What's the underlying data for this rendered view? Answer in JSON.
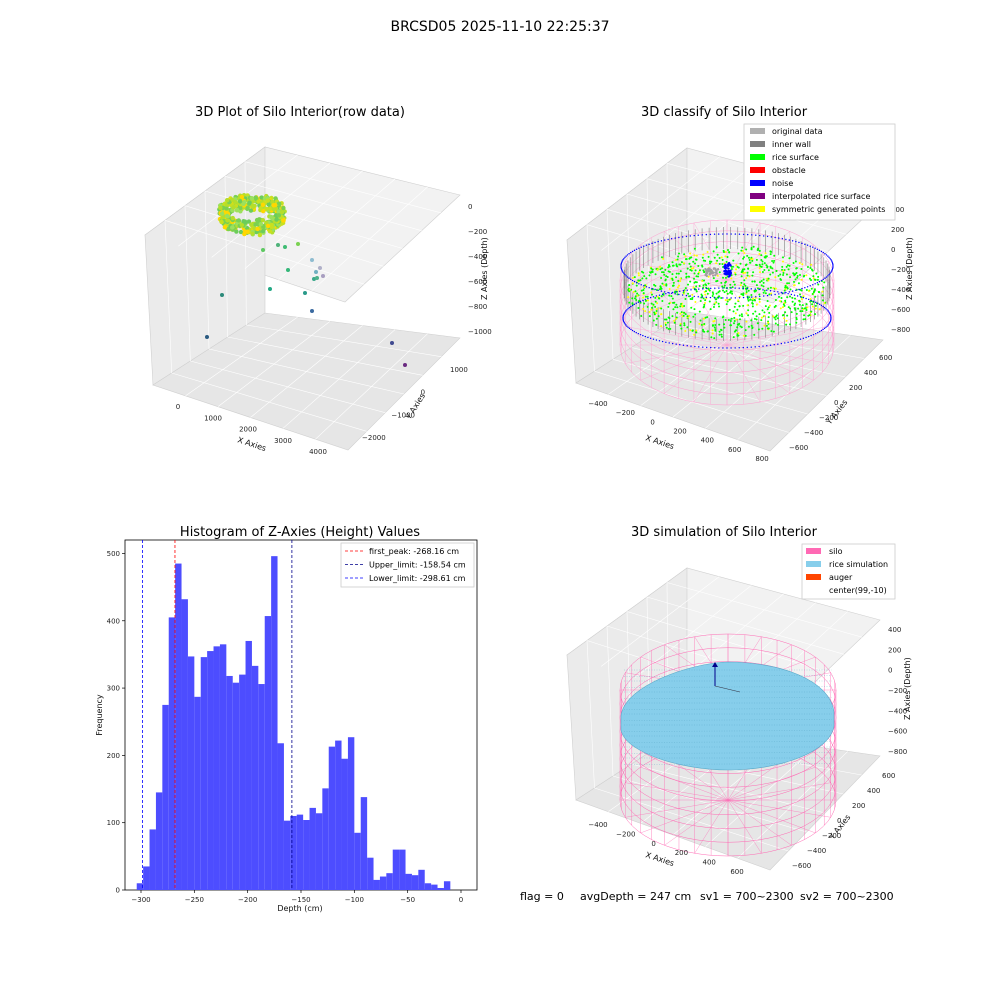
{
  "figure_title": "BRCSD05 2025-11-10 22:25:37",
  "status": {
    "flag": "flag = 0",
    "avg_depth": "avgDepth = 247 cm",
    "sv1": "sv1 = 700~2300",
    "sv2": "sv2 = 700~2300"
  },
  "colors": {
    "green_surface": "#00ff00",
    "noise": "#0000ff",
    "inner_wall": "#808080",
    "silo_pink": "#ff69b4",
    "rice_sim": "#87ceeb",
    "hist_bar": "#4d4dff"
  },
  "chart_data": [
    {
      "type": "scatter",
      "title": "3D Plot of Silo Interior(row data)",
      "xlabel": "X Axies",
      "ylabel": "Y Axies",
      "zlabel": "Z Axies (Depth)",
      "x_ticks": [
        "0",
        "1000",
        "2000",
        "3000",
        "4000"
      ],
      "y_ticks": [
        "−2000",
        "−1000",
        "0",
        "1000"
      ],
      "z_ticks": [
        "0",
        "−200",
        "−400",
        "−600",
        "−800",
        "−1000"
      ]
    },
    {
      "type": "scatter",
      "title": "3D classify of Silo Interior",
      "xlabel": "X Axies",
      "ylabel": "Y Axies",
      "zlabel": "Z Axies (Depth)",
      "x_ticks": [
        "−400",
        "−200",
        "0",
        "200",
        "400",
        "600",
        "800"
      ],
      "y_ticks": [
        "−600",
        "−400",
        "−200",
        "0",
        "200",
        "400",
        "600"
      ],
      "z_ticks": [
        "400",
        "200",
        "0",
        "−200",
        "−400",
        "−600",
        "−800"
      ],
      "legend": [
        {
          "label": "original data",
          "color": "#b0b0b0"
        },
        {
          "label": "inner wall",
          "color": "#808080"
        },
        {
          "label": "rice surface",
          "color": "#00ff00"
        },
        {
          "label": "obstacle",
          "color": "#ff0000"
        },
        {
          "label": "noise",
          "color": "#0000ff"
        },
        {
          "label": "interpolated rice surface",
          "color": "#800080"
        },
        {
          "label": "symmetric generated points",
          "color": "#ffff00"
        }
      ]
    },
    {
      "type": "bar",
      "title": "Histogram of Z-Axies (Height) Values",
      "xlabel": "Depth (cm)",
      "ylabel": "Frequency",
      "xlim": [
        -315,
        15
      ],
      "ylim": [
        0,
        520
      ],
      "bin_width": 6,
      "x_ticks": [
        -300,
        -250,
        -200,
        -150,
        -100,
        -50,
        0
      ],
      "y_ticks": [
        0,
        100,
        200,
        300,
        400,
        500
      ],
      "bins_start": [
        -304,
        -298,
        -292,
        -286,
        -280,
        -274,
        -268,
        -262,
        -256,
        -250,
        -244,
        -238,
        -232,
        -226,
        -220,
        -214,
        -208,
        -202,
        -196,
        -190,
        -184,
        -178,
        -172,
        -166,
        -160,
        -154,
        -148,
        -142,
        -136,
        -130,
        -124,
        -118,
        -112,
        -106,
        -100,
        -94,
        -88,
        -82,
        -76,
        -70,
        -64,
        -58,
        -52,
        -46,
        -40,
        -34,
        -28,
        -22,
        -16,
        -10,
        -4
      ],
      "values": [
        10,
        35,
        90,
        145,
        275,
        405,
        485,
        432,
        347,
        287,
        346,
        355,
        362,
        365,
        318,
        308,
        320,
        370,
        333,
        306,
        407,
        496,
        218,
        103,
        110,
        112,
        104,
        122,
        114,
        151,
        213,
        222,
        195,
        227,
        85,
        138,
        48,
        15,
        20,
        25,
        60,
        60,
        24,
        22,
        30,
        10,
        8,
        3,
        13,
        0,
        0
      ],
      "vlines": [
        {
          "label": "first_peak: -268.16 cm",
          "x": -268.16,
          "color": "#ff0000"
        },
        {
          "label": "Upper_limit: -158.54 cm",
          "x": -158.54,
          "color": "#00008b"
        },
        {
          "label": "Lower_limit: -298.61 cm",
          "x": -298.61,
          "color": "#0000ff"
        }
      ]
    },
    {
      "type": "scatter",
      "title": "3D simulation of Silo Interior",
      "xlabel": "X Axies",
      "ylabel": "Y Axies",
      "zlabel": "Z Axies (Depth)",
      "x_ticks": [
        "−400",
        "−200",
        "0",
        "200",
        "400",
        "600"
      ],
      "y_ticks": [
        "−600",
        "−400",
        "−200",
        "0",
        "200",
        "400",
        "600"
      ],
      "z_ticks": [
        "400",
        "200",
        "0",
        "−200",
        "−400",
        "−600",
        "−800"
      ],
      "legend": [
        {
          "label": "silo",
          "color": "#ff69b4"
        },
        {
          "label": "rice simulation",
          "color": "#87ceeb"
        },
        {
          "label": "auger",
          "color": "#ff4500"
        },
        {
          "label": "center(99,-10)",
          "color": "#ffffff"
        }
      ]
    }
  ]
}
